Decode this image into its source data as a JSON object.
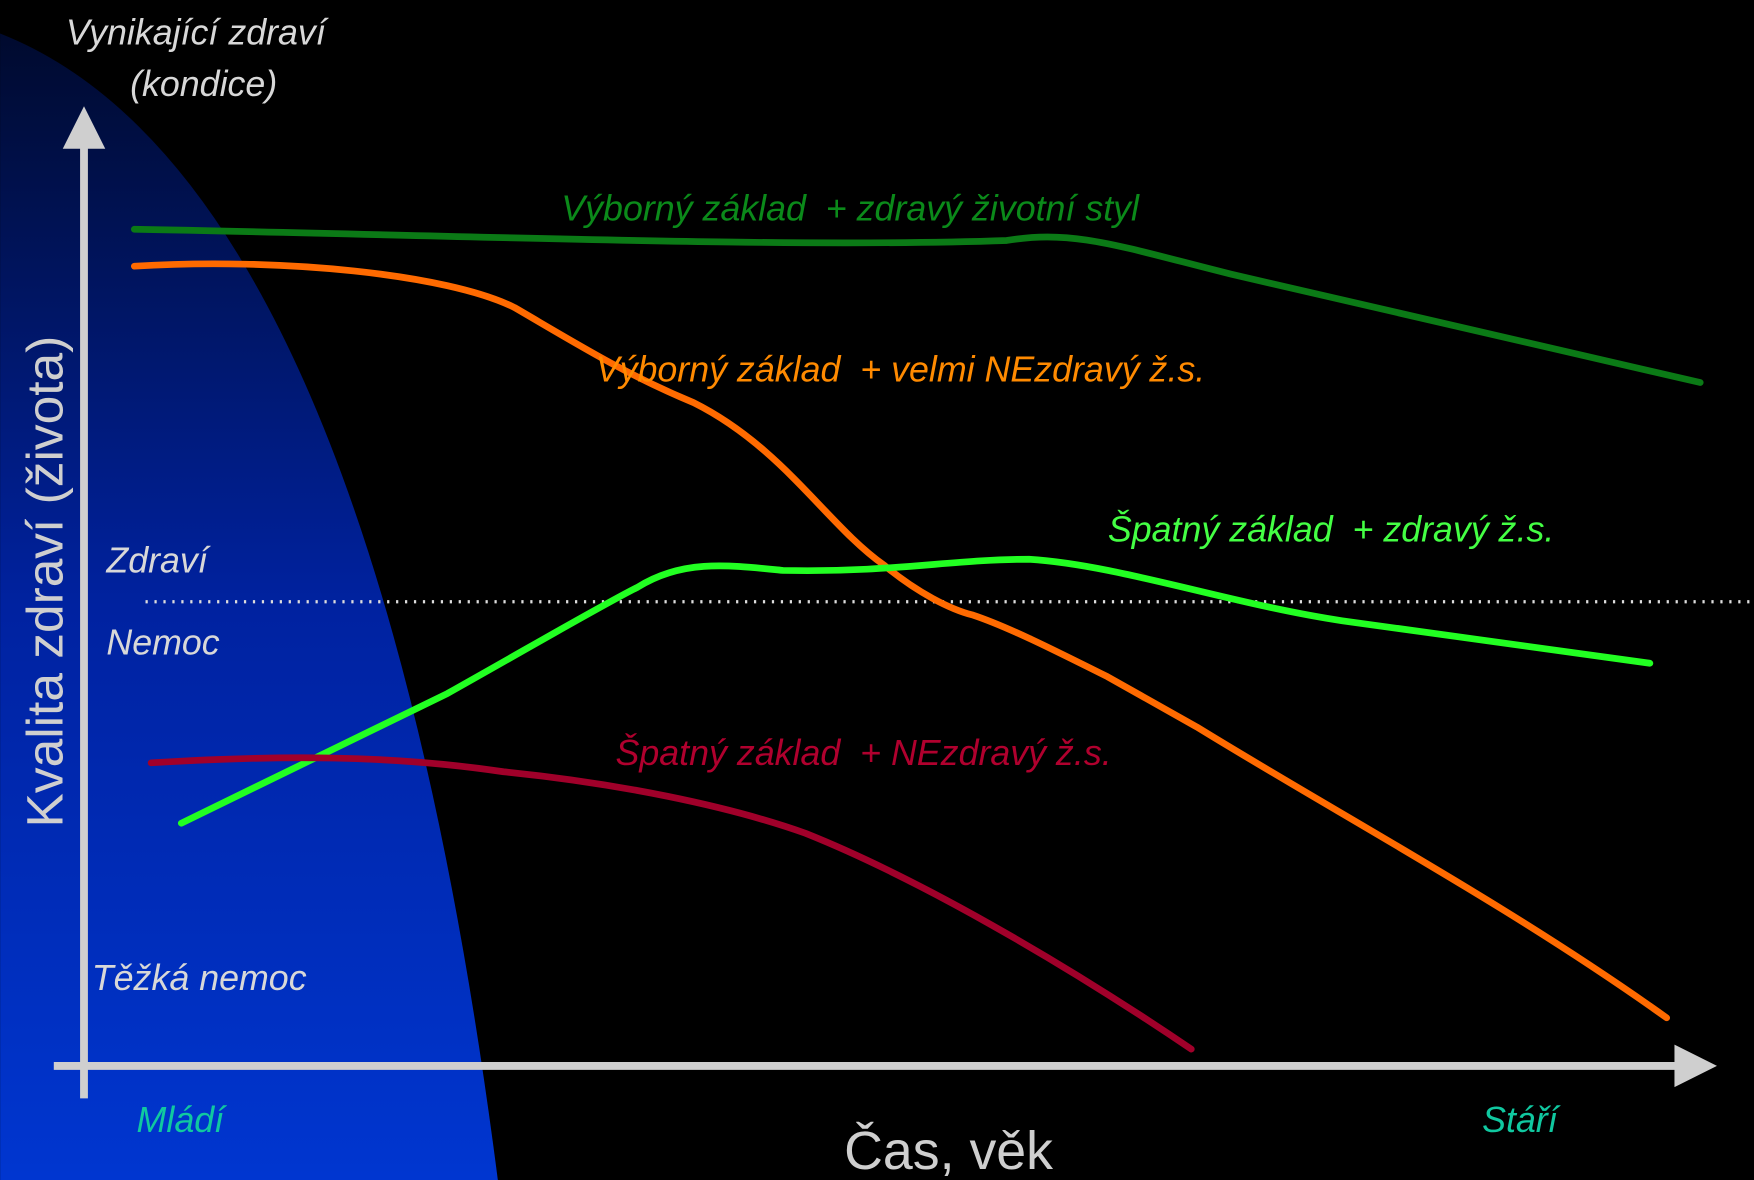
{
  "axes": {
    "y_top_label": [
      "Vynikající zdraví",
      "(kondice)"
    ],
    "y_title": "Kvalita zdraví (života)",
    "x_title": "Čas, věk",
    "x_start": "Mládí",
    "x_end": "Stáří"
  },
  "levels": {
    "health": "Zdraví",
    "illness": "Nemoc",
    "severe_illness": "Těžká nemoc"
  },
  "curves": [
    {
      "label": "Výborný základ  + zdravý životní styl"
    },
    {
      "label": "Výborný základ  + velmi NEzdravý ž.s."
    },
    {
      "label": "Špatný základ  + zdravý ž.s."
    },
    {
      "label": "Špatný základ  + NEzdravý ž.s."
    }
  ]
}
